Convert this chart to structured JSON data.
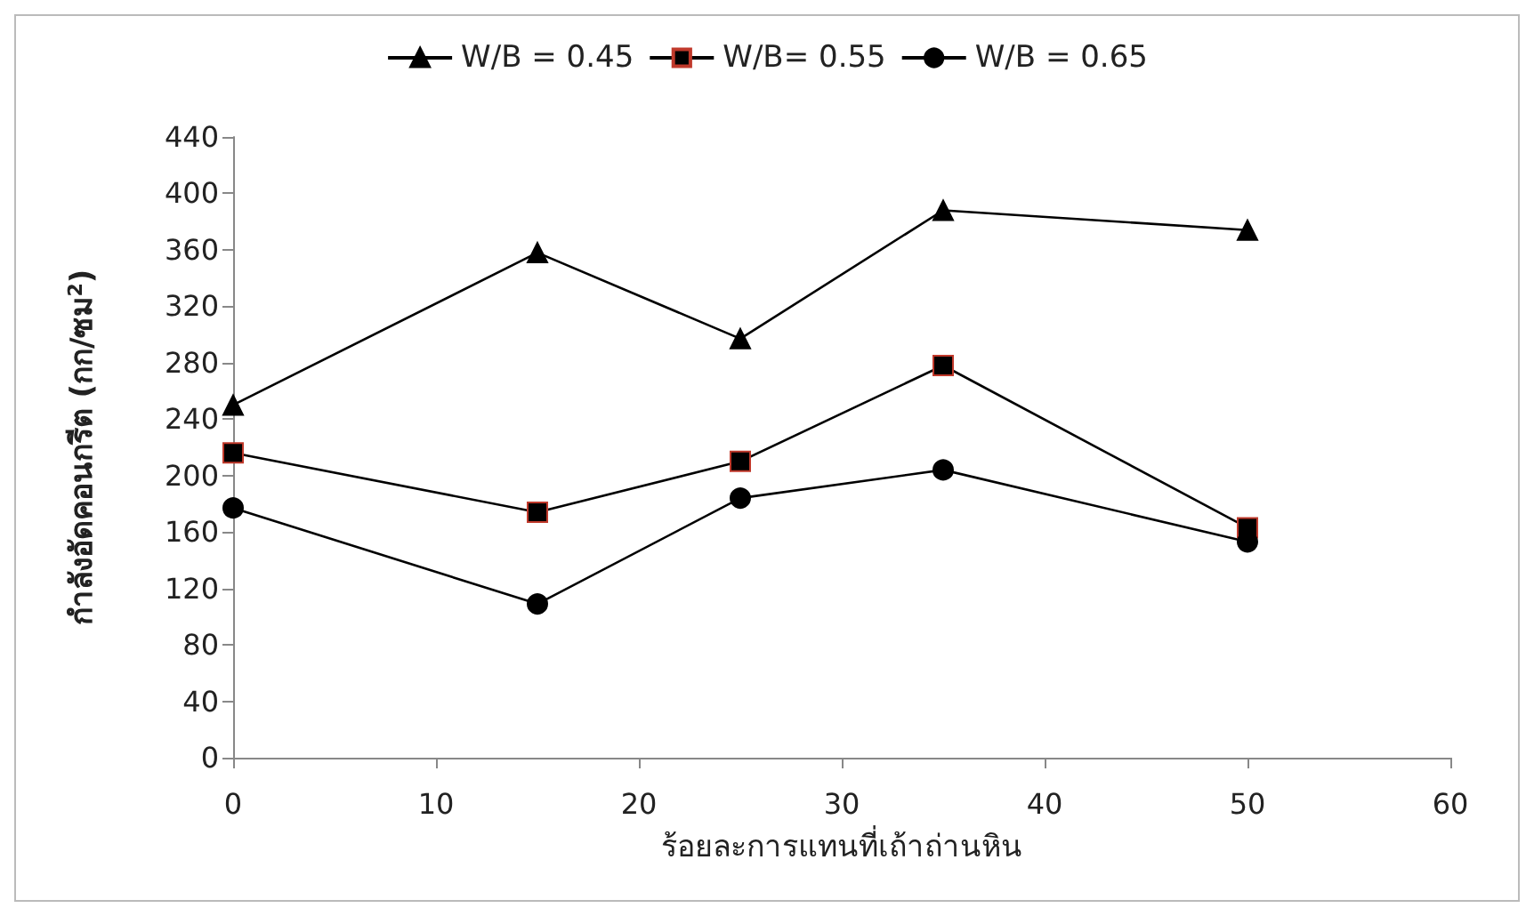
{
  "chart_data": {
    "type": "line",
    "xlabel": "ร้อยละการแทนที่เถ้าถ่านหิน",
    "ylabel": "กำลังอัดคอนกรีต (กก/ซม$^{2}$)",
    "x": [
      0,
      15,
      25,
      35,
      50
    ],
    "series": [
      {
        "name": "W/B = 0.45",
        "color": "#000000",
        "marker": "triangle",
        "values": [
          250,
          358,
          297,
          388,
          374
        ]
      },
      {
        "name": "W/B= 0.55",
        "color": "#000000",
        "marker": "square",
        "values": [
          216,
          174,
          210,
          278,
          163
        ]
      },
      {
        "name": "W/B = 0.65",
        "color": "#000000",
        "marker": "circle",
        "values": [
          177,
          109,
          184,
          204,
          153
        ]
      }
    ],
    "xlim": [
      0,
      60
    ],
    "xticks": [
      0,
      10,
      20,
      30,
      40,
      50,
      60
    ],
    "ylim": [
      0,
      440
    ],
    "yticks": [
      0,
      40,
      80,
      120,
      160,
      200,
      240,
      280,
      320,
      360,
      400,
      440
    ],
    "grid": false,
    "legend": "top"
  }
}
